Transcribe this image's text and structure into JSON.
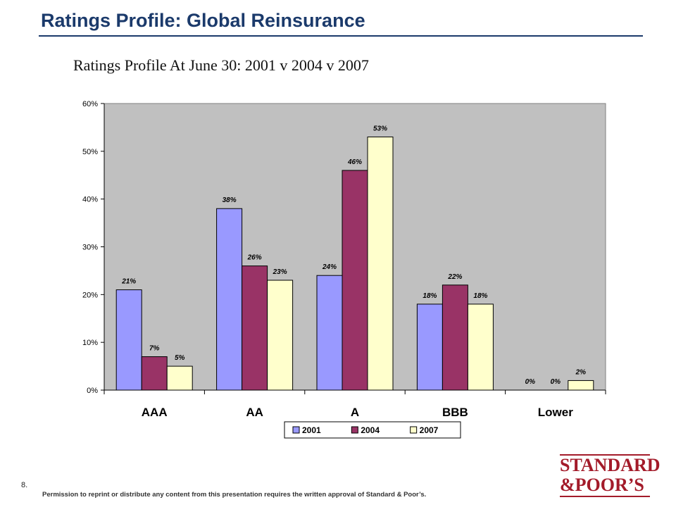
{
  "slide": {
    "title": "Ratings Profile: Global Reinsurance",
    "page_number": "8.",
    "footer_note": "Permission to reprint or distribute any content from this presentation requires the written approval of Standard & Poor’s.",
    "logo_line1": "STANDARD",
    "logo_line2": "&POOR’S"
  },
  "chart_data": {
    "type": "bar",
    "title": "Ratings Profile At June 30:  2001 v 2004 v 2007",
    "categories": [
      "AAA",
      "AA",
      "A",
      "BBB",
      "Lower"
    ],
    "series": [
      {
        "name": "2001",
        "color": "#9999ff",
        "values": [
          21,
          38,
          24,
          18,
          0
        ],
        "labels": [
          "21%",
          "38%",
          "24%",
          "18%",
          "0%"
        ]
      },
      {
        "name": "2004",
        "color": "#993366",
        "values": [
          7,
          26,
          46,
          22,
          0
        ],
        "labels": [
          "7%",
          "26%",
          "46%",
          "22%",
          "0%"
        ]
      },
      {
        "name": "2007",
        "color": "#ffffcc",
        "values": [
          5,
          23,
          53,
          18,
          2
        ],
        "labels": [
          "5%",
          "23%",
          "53%",
          "18%",
          "2%"
        ]
      }
    ],
    "ylim": [
      0,
      60
    ],
    "yticks": [
      0,
      10,
      20,
      30,
      40,
      50,
      60
    ],
    "ytick_labels": [
      "0%",
      "10%",
      "20%",
      "30%",
      "40%",
      "50%",
      "60%"
    ],
    "plot_background": "#c0c0c0",
    "grid": false,
    "legend_position": "bottom"
  }
}
